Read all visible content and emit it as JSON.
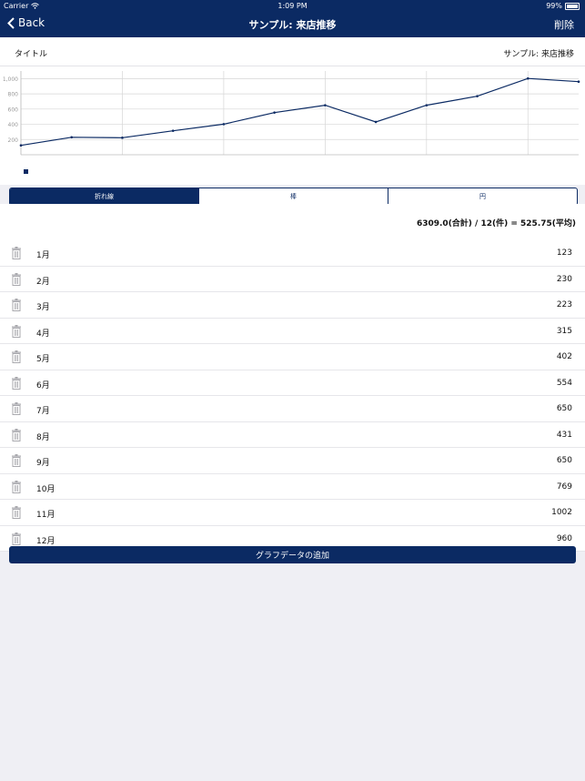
{
  "status_bar": {
    "carrier": "Carrier",
    "time": "1:09 PM",
    "battery": "99%"
  },
  "nav": {
    "back_label": "Back",
    "title": "サンプル: 来店推移",
    "delete_label": "削除"
  },
  "title_row": {
    "label": "タイトル",
    "value": "サンプル: 来店推移"
  },
  "chart_data": {
    "type": "line",
    "categories": [
      "1月",
      "2月",
      "3月",
      "4月",
      "5月",
      "6月",
      "7月",
      "8月",
      "9月",
      "10月",
      "11月",
      "12月"
    ],
    "values": [
      123,
      230,
      223,
      315,
      402,
      554,
      650,
      431,
      650,
      769,
      1002,
      960
    ],
    "ylim": [
      0,
      1100
    ],
    "yticks": [
      "200",
      "400",
      "600",
      "800",
      "1,000"
    ],
    "grid": true,
    "color": "#0b2a63"
  },
  "segments": [
    {
      "label": "折れ線",
      "active": true
    },
    {
      "label": "棒",
      "active": false
    },
    {
      "label": "円",
      "active": false
    }
  ],
  "summary": "6309.0(合計) / 12(件) = 525.75(平均)",
  "rows": [
    {
      "month": "1月",
      "value": "123"
    },
    {
      "month": "2月",
      "value": "230"
    },
    {
      "month": "3月",
      "value": "223"
    },
    {
      "month": "4月",
      "value": "315"
    },
    {
      "month": "5月",
      "value": "402"
    },
    {
      "month": "6月",
      "value": "554"
    },
    {
      "month": "7月",
      "value": "650"
    },
    {
      "month": "8月",
      "value": "431"
    },
    {
      "month": "9月",
      "value": "650"
    },
    {
      "month": "10月",
      "value": "769"
    },
    {
      "month": "11月",
      "value": "1002"
    },
    {
      "month": "12月",
      "value": "960"
    }
  ],
  "add_button_label": "グラフデータの追加"
}
